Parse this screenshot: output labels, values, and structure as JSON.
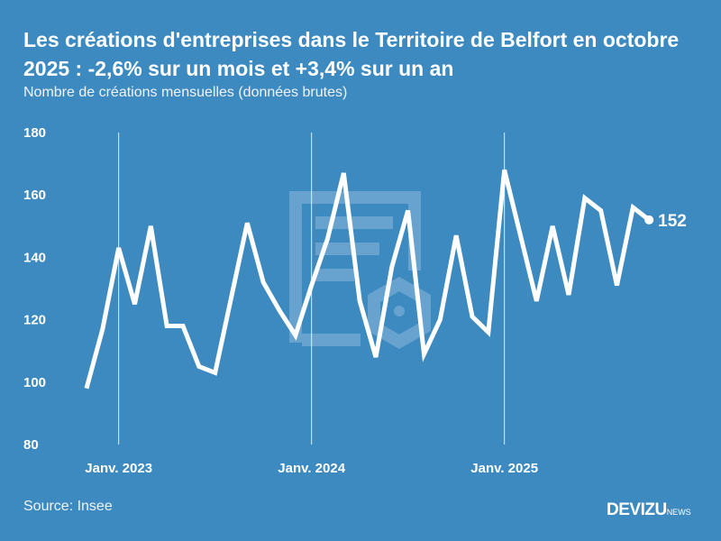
{
  "title": "Les créations d'entreprises dans le Territoire de Belfort en octobre 2025 : -2,6% sur un mois et +3,4% sur un an",
  "subtitle": "Nombre de créations mensuelles (données brutes)",
  "source": "Source: Insee",
  "logo": {
    "main": "DEVIZU",
    "suffix": "NEWS"
  },
  "colors": {
    "background": "#3d8ac0",
    "line": "#ffffff"
  },
  "chart_data": {
    "type": "line",
    "title": "Les créations d'entreprises dans le Territoire de Belfort en octobre 2025 : -2,6% sur un mois et +3,4% sur un an",
    "subtitle": "Nombre de créations mensuelles (données brutes)",
    "xlabel": "",
    "ylabel": "",
    "ylim": [
      80,
      180
    ],
    "yticks": [
      80,
      100,
      120,
      140,
      160,
      180
    ],
    "xticks": [
      {
        "label": "Janv. 2023",
        "x": "2023-01"
      },
      {
        "label": "Janv. 2024",
        "x": "2024-01"
      },
      {
        "label": "Janv. 2025",
        "x": "2025-01"
      }
    ],
    "grid": "vertical lines at January",
    "x": [
      "2022-11",
      "2022-12",
      "2023-01",
      "2023-02",
      "2023-03",
      "2023-04",
      "2023-05",
      "2023-06",
      "2023-07",
      "2023-08",
      "2023-09",
      "2023-10",
      "2023-11",
      "2023-12",
      "2024-01",
      "2024-02",
      "2024-03",
      "2024-04",
      "2024-05",
      "2024-06",
      "2024-07",
      "2024-08",
      "2024-09",
      "2024-10",
      "2024-11",
      "2024-12",
      "2025-01",
      "2025-02",
      "2025-03",
      "2025-04",
      "2025-05",
      "2025-06",
      "2025-07",
      "2025-08",
      "2025-09",
      "2025-10"
    ],
    "values": [
      98,
      117,
      143,
      125,
      150,
      118,
      118,
      105,
      103,
      127,
      151,
      132,
      123,
      115,
      131,
      146,
      167,
      126,
      108,
      137,
      155,
      109,
      120,
      147,
      121,
      116,
      168,
      147,
      126,
      150,
      128,
      159,
      155,
      131,
      156,
      152
    ],
    "last_label": "152"
  }
}
